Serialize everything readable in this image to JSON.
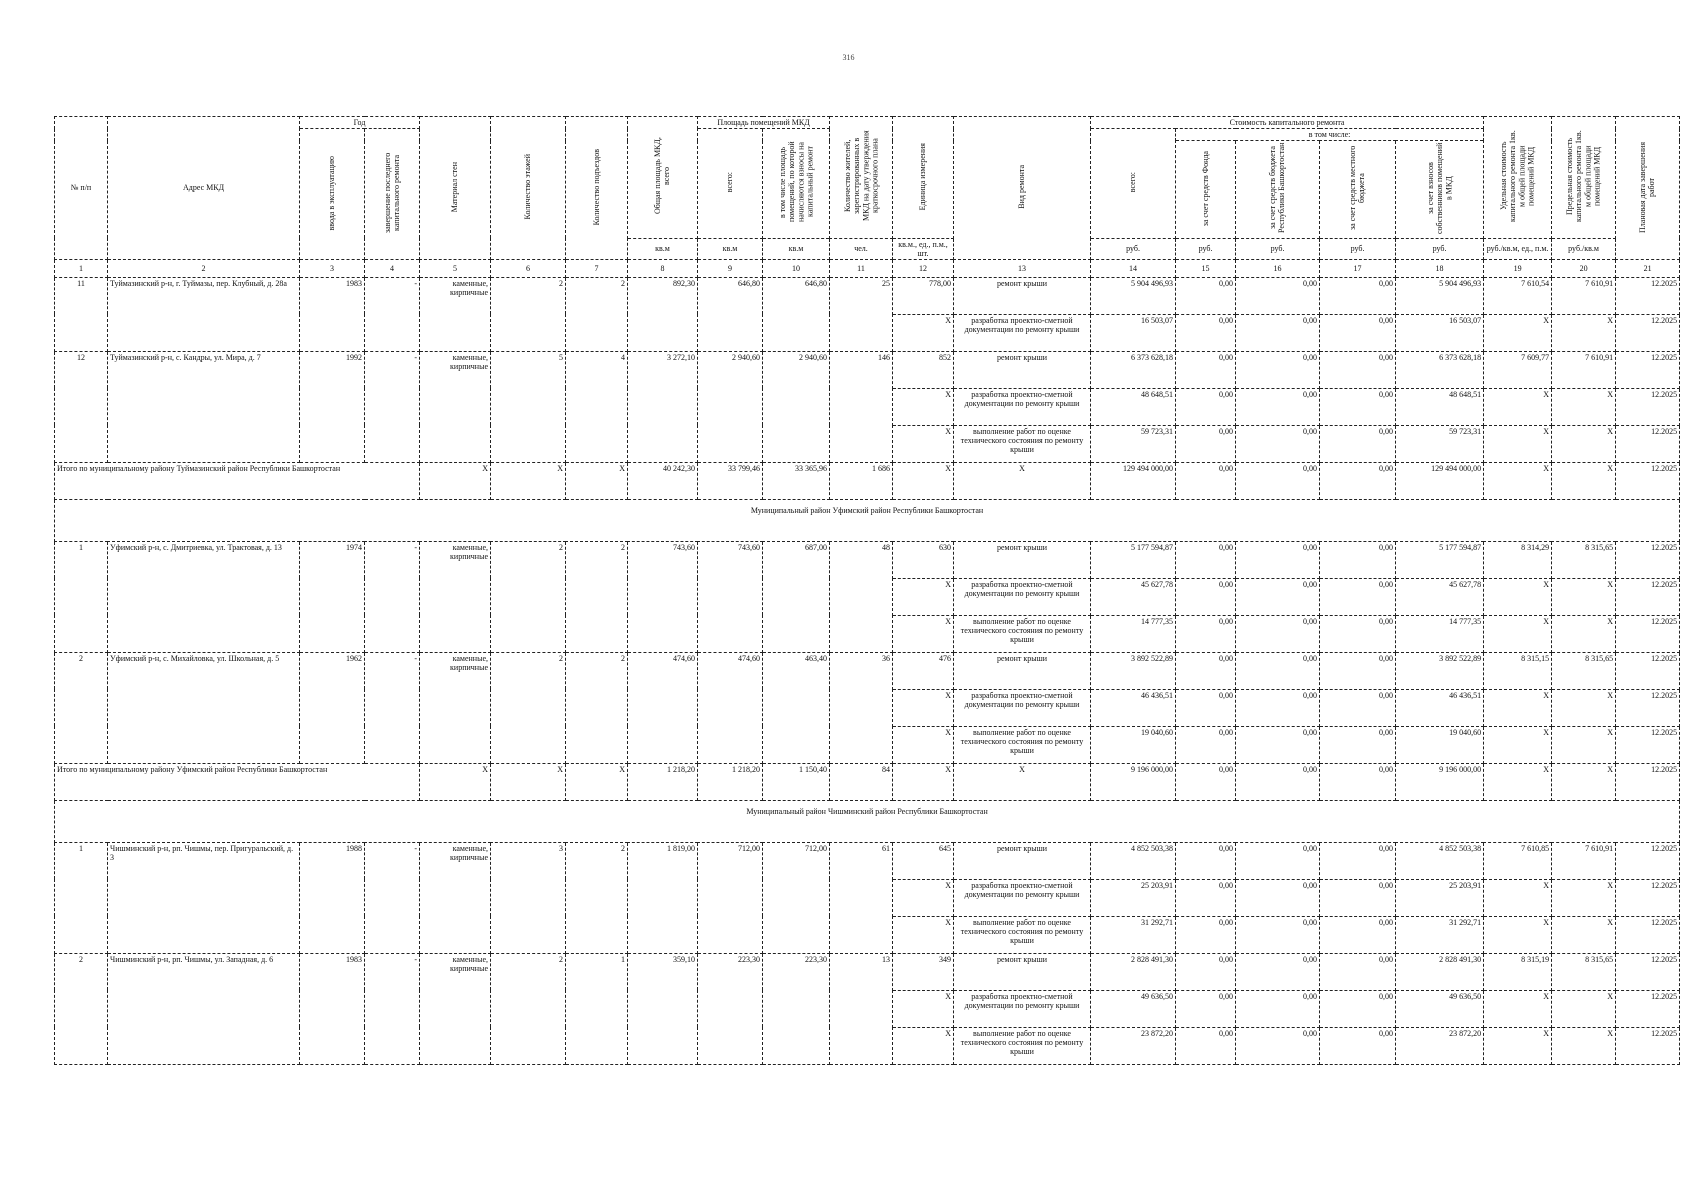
{
  "page_number": "316",
  "header": {
    "num": "№ п/п",
    "address": "Адрес МКД",
    "year": "Год",
    "year_commission": "ввода в эксплуатацию",
    "year_last_repair": "завершение последнего капитального ремонта",
    "wall_material": "Материал стен",
    "floors": "Количество этажей",
    "entrances": "Количество подъездов",
    "total_area": "Общая площадь МКД, всего",
    "premises_area": "Площадь помещений МКД",
    "premises_total": "всего:",
    "premises_contrib": "в том числе площадь помещений, по которой начисляются взносы на капитальный ремонт",
    "residents": "Количество жителей, зарегистрированных в МКД на дату утверждения краткосрочного плана",
    "unit": "Единица измерения",
    "repair_type": "Вид ремонта",
    "cost": "Стоимость капитального ремонта",
    "cost_total": "всего:",
    "including": "в том числе:",
    "cost_fund": "за счет средств Фонда",
    "cost_republic": "за счет средств бюджета Республики Башкортостан",
    "cost_local": "за счет средств местного бюджета",
    "cost_owners": "за счет взносов собственников помещений в МКД",
    "unit_cost": "Удельная стоимость капитального ремонта 1кв. м общей площади помещений МКД",
    "max_cost": "Предельная стоимость капитального ремонта 1кв. м общей площади помещений МКД",
    "planned_date": "Плановая дата завершения работ",
    "units": {
      "total_area": "кв.м",
      "premises_total": "кв.м",
      "premises_contrib": "кв.м",
      "residents": "чел.",
      "unit": "кв.м., ед., п.м., шт.",
      "cost_total": "руб.",
      "cost_fund": "руб.",
      "cost_republic": "руб.",
      "cost_local": "руб.",
      "cost_owners": "руб.",
      "unit_cost": "руб./кв.м, ед., п.м.",
      "max_cost": "руб./кв.м"
    },
    "column_numbers": [
      "1",
      "2",
      "3",
      "4",
      "5",
      "6",
      "7",
      "8",
      "9",
      "10",
      "11",
      "12",
      "13",
      "14",
      "15",
      "16",
      "17",
      "18",
      "19",
      "20",
      "21"
    ]
  },
  "sections": [
    {
      "title": null,
      "buildings": [
        {
          "num": "11",
          "address": "Туймазинский р-н, г. Туймазы, пер. Клубный, д. 28а",
          "year_commission": "1983",
          "year_last_repair": "-",
          "material": "каменные, кирпичные",
          "floors": "2",
          "entrances": "2",
          "total_area": "892,30",
          "premises_total": "646,80",
          "premises_contrib": "646,80",
          "residents": "25",
          "works": [
            [
              "778,00",
              "ремонт крыши",
              "5 904 496,93",
              "0,00",
              "0,00",
              "0,00",
              "5 904 496,93",
              "7 610,54",
              "7 610,91",
              "12.2025"
            ],
            [
              "X",
              "разработка проектно-сметной документации по ремонту крыши",
              "16 503,07",
              "0,00",
              "0,00",
              "0,00",
              "16 503,07",
              "X",
              "X",
              "12.2025"
            ]
          ]
        },
        {
          "num": "12",
          "address": "Туймазинский р-н, с. Кандры, ул. Мира, д. 7",
          "year_commission": "1992",
          "year_last_repair": "-",
          "material": "каменные, кирпичные",
          "floors": "5",
          "entrances": "4",
          "total_area": "3 272,10",
          "premises_total": "2 940,60",
          "premises_contrib": "2 940,60",
          "residents": "146",
          "works": [
            [
              "852",
              "ремонт крыши",
              "6 373 628,18",
              "0,00",
              "0,00",
              "0,00",
              "6 373 628,18",
              "7 609,77",
              "7 610,91",
              "12.2025"
            ],
            [
              "X",
              "разработка проектно-сметной документации по ремонту крыши",
              "48 648,51",
              "0,00",
              "0,00",
              "0,00",
              "48 648,51",
              "X",
              "X",
              "12.2025"
            ],
            [
              "X",
              "выполнение работ по оценке технического состояния по ремонту крыши",
              "59 723,31",
              "0,00",
              "0,00",
              "0,00",
              "59 723,31",
              "X",
              "X",
              "12.2025"
            ]
          ]
        }
      ],
      "total": {
        "label": "Итого по муниципальному району Туймазинский район Республики Башкортостан",
        "cells": [
          "X",
          "X",
          "X",
          "40 242,30",
          "33 799,46",
          "33 365,96",
          "1 686",
          "X",
          "X",
          "129 494 000,00",
          "0,00",
          "0,00",
          "0,00",
          "129 494 000,00",
          "X",
          "X",
          "12.2025"
        ]
      }
    },
    {
      "title": "Муниципальный район Уфимский район Республики Башкортостан",
      "buildings": [
        {
          "num": "1",
          "address": "Уфимский р-н, с. Дмитриевка, ул. Трактовая, д. 13",
          "year_commission": "1974",
          "year_last_repair": "-",
          "material": "каменные, кирпичные",
          "floors": "2",
          "entrances": "2",
          "total_area": "743,60",
          "premises_total": "743,60",
          "premises_contrib": "687,00",
          "residents": "48",
          "works": [
            [
              "630",
              "ремонт крыши",
              "5 177 594,87",
              "0,00",
              "0,00",
              "0,00",
              "5 177 594,87",
              "8 314,29",
              "8 315,65",
              "12.2025"
            ],
            [
              "X",
              "разработка проектно-сметной документации по ремонту крыши",
              "45 627,78",
              "0,00",
              "0,00",
              "0,00",
              "45 627,78",
              "X",
              "X",
              "12.2025"
            ],
            [
              "X",
              "выполнение работ по оценке технического состояния по ремонту крыши",
              "14 777,35",
              "0,00",
              "0,00",
              "0,00",
              "14 777,35",
              "X",
              "X",
              "12.2025"
            ]
          ]
        },
        {
          "num": "2",
          "address": "Уфимский р-н, с. Михайловка, ул. Школьная, д. 5",
          "year_commission": "1962",
          "year_last_repair": "-",
          "material": "каменные, кирпичные",
          "floors": "2",
          "entrances": "2",
          "total_area": "474,60",
          "premises_total": "474,60",
          "premises_contrib": "463,40",
          "residents": "36",
          "works": [
            [
              "476",
              "ремонт крыши",
              "3 892 522,89",
              "0,00",
              "0,00",
              "0,00",
              "3 892 522,89",
              "8 315,15",
              "8 315,65",
              "12.2025"
            ],
            [
              "X",
              "разработка проектно-сметной документации по ремонту крыши",
              "46 436,51",
              "0,00",
              "0,00",
              "0,00",
              "46 436,51",
              "X",
              "X",
              "12.2025"
            ],
            [
              "X",
              "выполнение работ по оценке технического состояния по ремонту крыши",
              "19 040,60",
              "0,00",
              "0,00",
              "0,00",
              "19 040,60",
              "X",
              "X",
              "12.2025"
            ]
          ]
        }
      ],
      "total": {
        "label": "Итого по муниципальному району Уфимский район Республики Башкортостан",
        "cells": [
          "X",
          "X",
          "X",
          "1 218,20",
          "1 218,20",
          "1 150,40",
          "84",
          "X",
          "X",
          "9 196 000,00",
          "0,00",
          "0,00",
          "0,00",
          "9 196 000,00",
          "X",
          "X",
          "12.2025"
        ]
      }
    },
    {
      "title": "Муниципальный район Чишминский район Республики Башкортостан",
      "buildings": [
        {
          "num": "1",
          "address": "Чишминский р-н, рп. Чишмы, пер. Пригуральский, д. 3",
          "year_commission": "1988",
          "year_last_repair": "-",
          "material": "каменные, кирпичные",
          "floors": "3",
          "entrances": "2",
          "total_area": "1 819,00",
          "premises_total": "712,00",
          "premises_contrib": "712,00",
          "residents": "61",
          "works": [
            [
              "645",
              "ремонт крыши",
              "4 852 503,38",
              "0,00",
              "0,00",
              "0,00",
              "4 852 503,38",
              "7 610,85",
              "7 610,91",
              "12.2025"
            ],
            [
              "X",
              "разработка проектно-сметной документации по ремонту крыши",
              "25 203,91",
              "0,00",
              "0,00",
              "0,00",
              "25 203,91",
              "X",
              "X",
              "12.2025"
            ],
            [
              "X",
              "выполнение работ по оценке технического состояния по ремонту крыши",
              "31 292,71",
              "0,00",
              "0,00",
              "0,00",
              "31 292,71",
              "X",
              "X",
              "12.2025"
            ]
          ]
        },
        {
          "num": "2",
          "address": "Чишминский р-н, рп. Чишмы, ул. Западная, д. 6",
          "year_commission": "1983",
          "year_last_repair": "-",
          "material": "каменные, кирпичные",
          "floors": "2",
          "entrances": "1",
          "total_area": "359,10",
          "premises_total": "223,30",
          "premises_contrib": "223,30",
          "residents": "13",
          "works": [
            [
              "349",
              "ремонт крыши",
              "2 828 491,30",
              "0,00",
              "0,00",
              "0,00",
              "2 828 491,30",
              "8 315,19",
              "8 315,65",
              "12.2025"
            ],
            [
              "X",
              "разработка проектно-сметной документации по ремонту крыши",
              "49 636,50",
              "0,00",
              "0,00",
              "0,00",
              "49 636,50",
              "X",
              "X",
              "12.2025"
            ],
            [
              "X",
              "выполнение работ по оценке технического состояния по ремонту крыши",
              "23 872,20",
              "0,00",
              "0,00",
              "0,00",
              "23 872,20",
              "X",
              "X",
              "12.2025"
            ]
          ]
        }
      ],
      "total": null
    }
  ]
}
